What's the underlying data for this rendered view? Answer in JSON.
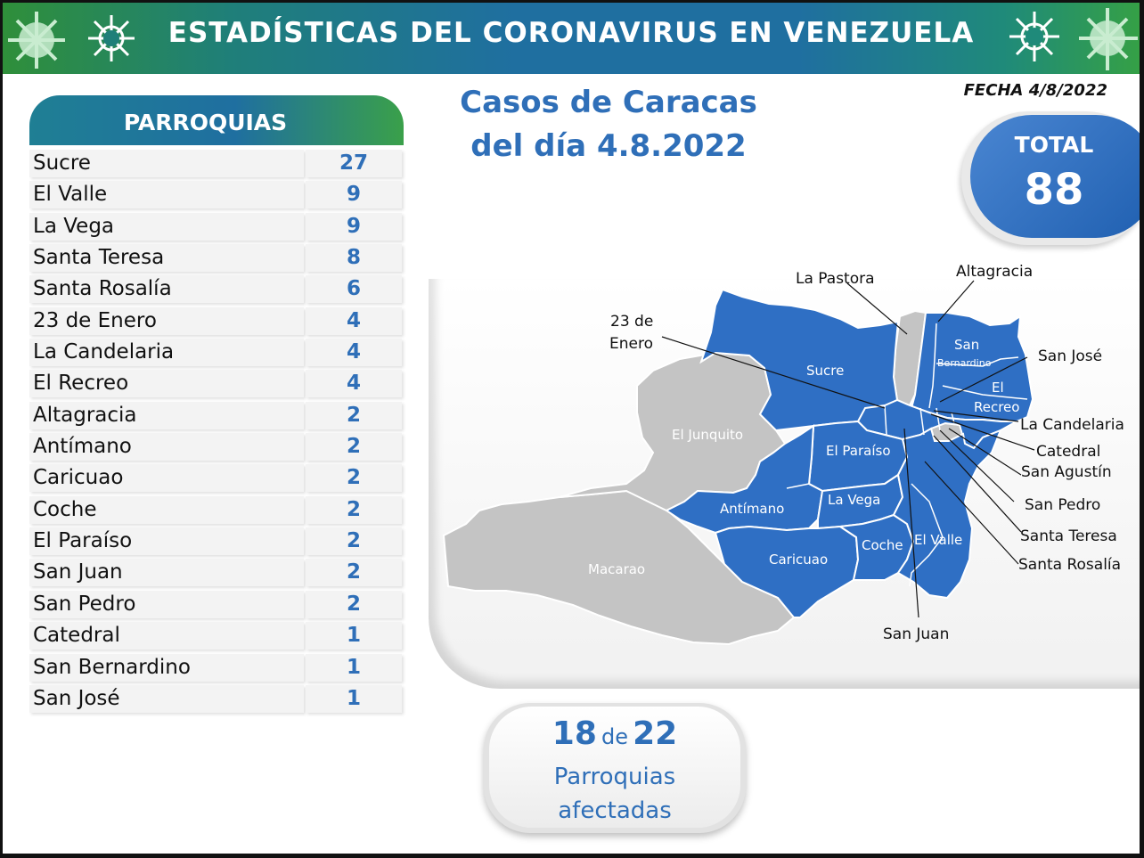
{
  "banner": {
    "title": "ESTADÍSTICAS DEL CORONAVIRUS EN VENEZUELA"
  },
  "header": {
    "title_line1": "Casos de Caracas",
    "title_line2": "del día 4.8.2022",
    "fecha": "FECHA 4/8/2022"
  },
  "total": {
    "label": "TOTAL",
    "value": "88"
  },
  "table": {
    "title": "PARROQUIAS",
    "rows": [
      {
        "name": "Sucre",
        "value": "27"
      },
      {
        "name": "El Valle",
        "value": "9"
      },
      {
        "name": "La Vega",
        "value": "9"
      },
      {
        "name": "Santa Teresa",
        "value": "8"
      },
      {
        "name": "Santa Rosalía",
        "value": "6"
      },
      {
        "name": "23 de Enero",
        "value": "4"
      },
      {
        "name": "La Candelaria",
        "value": "4"
      },
      {
        "name": "El Recreo",
        "value": "4"
      },
      {
        "name": "Altagracia",
        "value": "2"
      },
      {
        "name": "Antímano",
        "value": "2"
      },
      {
        "name": "Caricuao",
        "value": "2"
      },
      {
        "name": "Coche",
        "value": "2"
      },
      {
        "name": "El Paraíso",
        "value": "2"
      },
      {
        "name": "San Juan",
        "value": "2"
      },
      {
        "name": "San Pedro",
        "value": "2"
      },
      {
        "name": "Catedral",
        "value": "1"
      },
      {
        "name": "San Bernardino",
        "value": "1"
      },
      {
        "name": "San José",
        "value": "1"
      }
    ]
  },
  "map": {
    "affected_color": "#2f6fc4",
    "unaffected_color": "#c4c4c4",
    "region_labels": {
      "sucre": "Sucre",
      "el_junquito": "El Junquito",
      "macarao": "Macarao",
      "el_paraiso": "El Paraíso",
      "antimano": "Antímano",
      "la_vega": "La Vega",
      "caricuao": "Caricuao",
      "coche": "Coche",
      "el_valle": "El Valle",
      "san_bernardino_1": "San",
      "san_bernardino_2": "Bernardino",
      "el_recreo_1": "El",
      "el_recreo_2": "Recreo"
    },
    "callouts": {
      "la_pastora": "La Pastora",
      "altagracia": "Altagracia",
      "veintitres_1": "23 de",
      "veintitres_2": "Enero",
      "san_jose": "San José",
      "la_candelaria": "La Candelaria",
      "catedral": "Catedral",
      "san_agustin": "San Agustín",
      "san_pedro": "San Pedro",
      "santa_teresa": "Santa Teresa",
      "santa_rosalia": "Santa Rosalía",
      "san_juan": "San Juan"
    }
  },
  "summary": {
    "affected": "18",
    "of": "de",
    "total": "22",
    "line2": "Parroquias",
    "line3": "afectadas"
  }
}
